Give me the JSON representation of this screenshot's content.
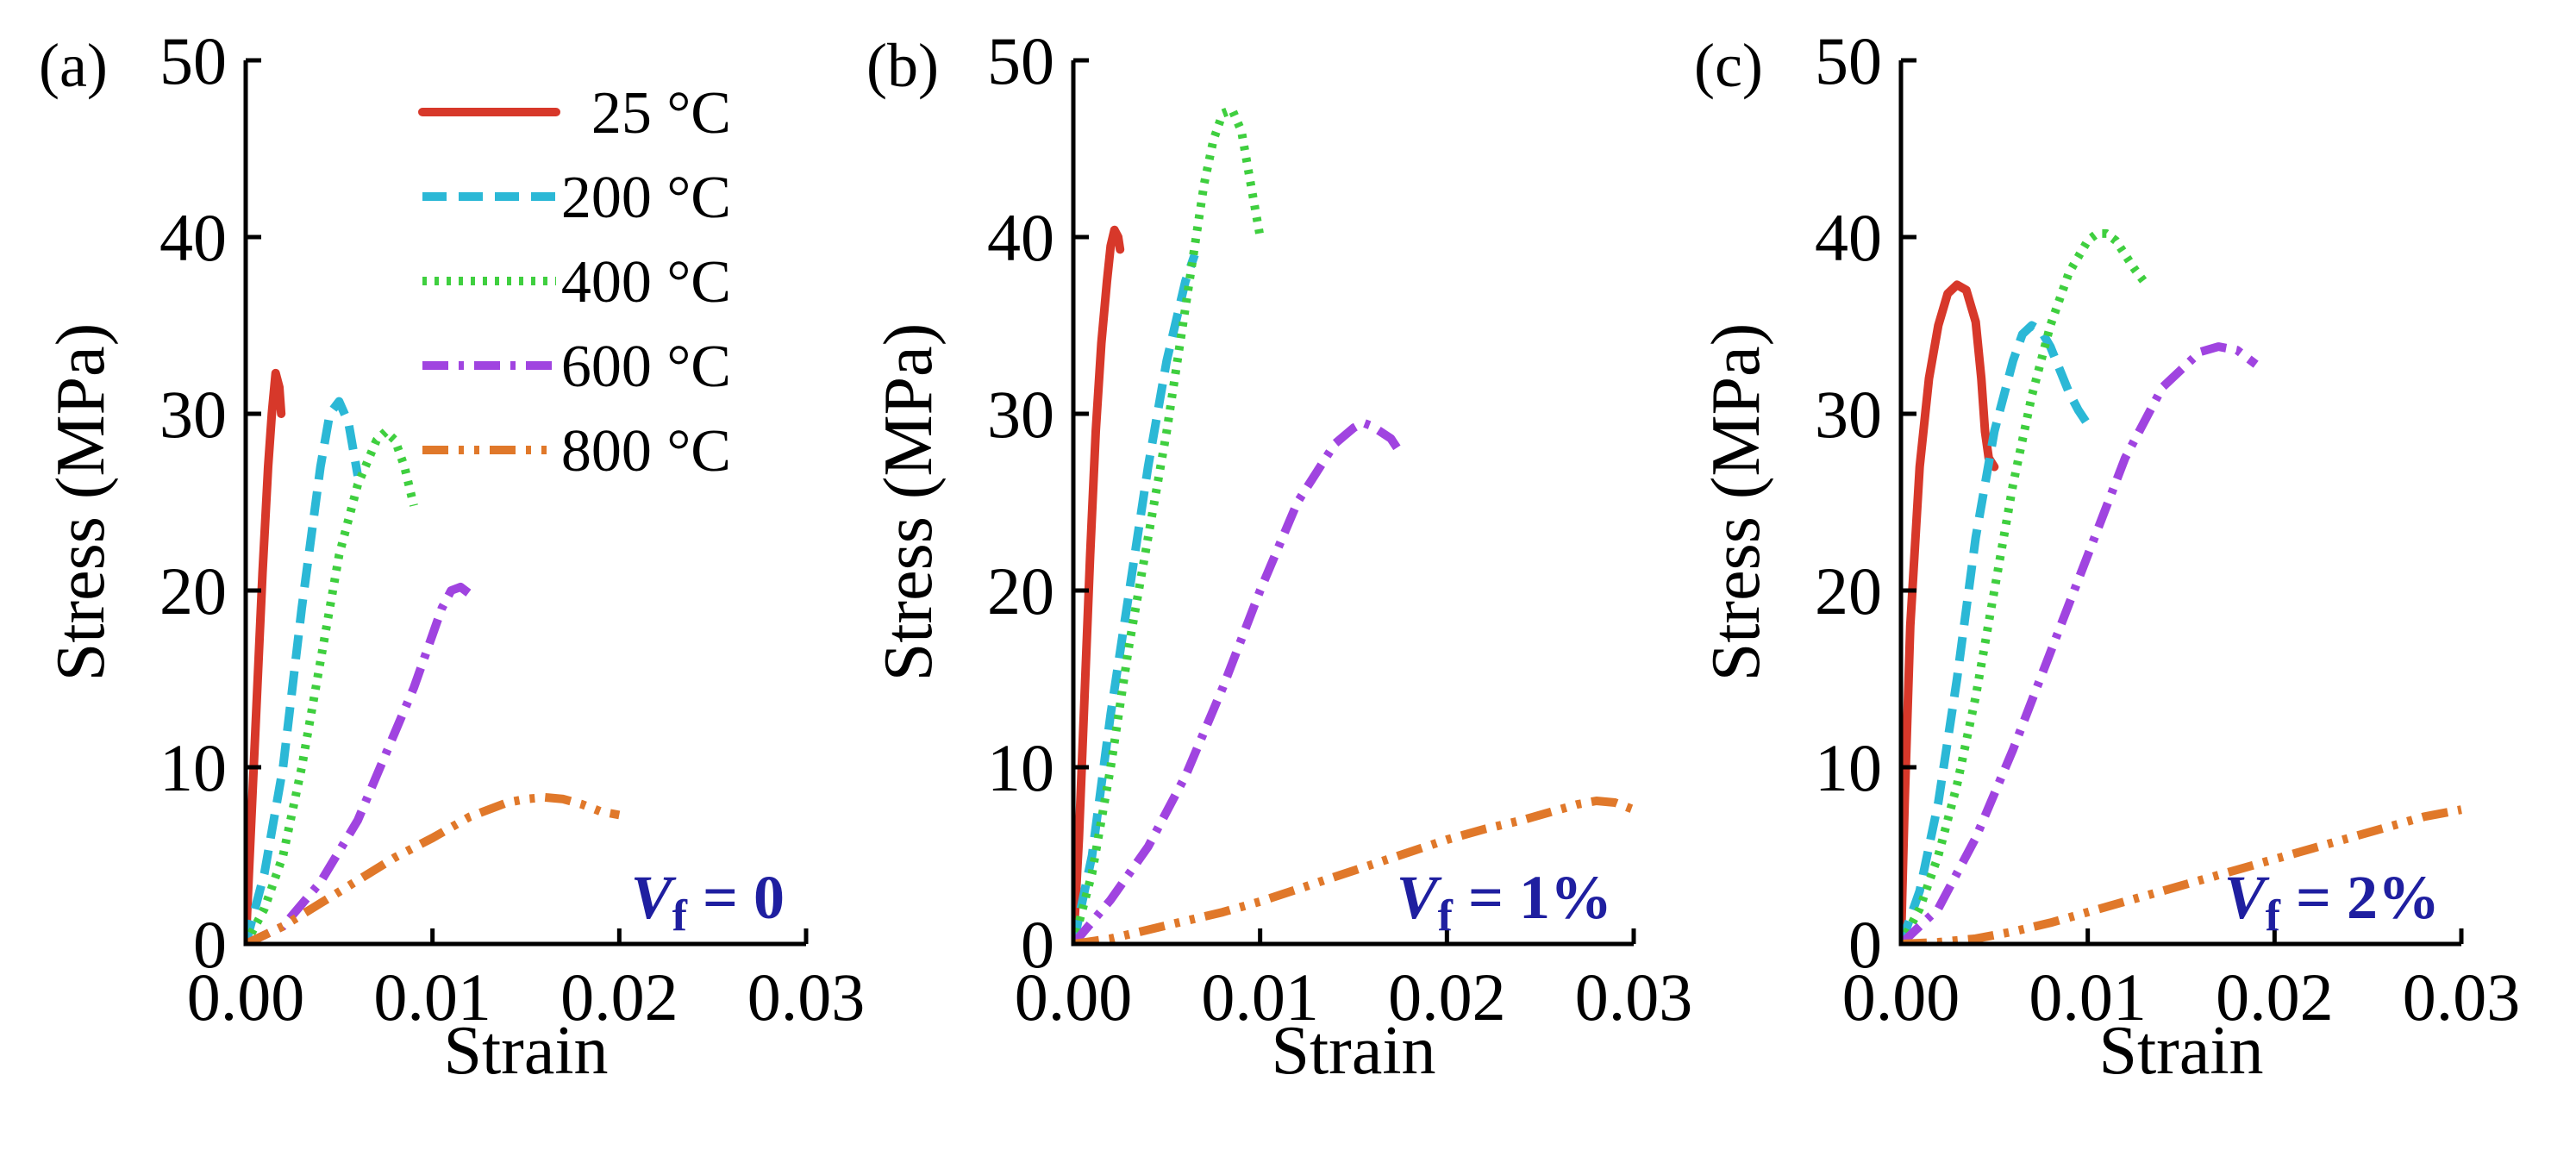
{
  "figure": {
    "legend": [
      {
        "label": "25 °C",
        "color": "#d7382a",
        "dash": "solid"
      },
      {
        "label": "200 °C",
        "color": "#2bb8d6",
        "dash": "dash"
      },
      {
        "label": "400 °C",
        "color": "#3fcf3f",
        "dash": "dot"
      },
      {
        "label": "600 °C",
        "color": "#a044e0",
        "dash": "dashdot"
      },
      {
        "label": "800 °C",
        "color": "#e0782a",
        "dash": "dashdotdot"
      }
    ]
  },
  "chart_data": [
    {
      "type": "line",
      "panel_label": "(a)",
      "xlabel": "Strain",
      "ylabel": "Stress (MPa)",
      "xlim": [
        0,
        0.03
      ],
      "ylim": [
        0,
        50
      ],
      "xticks": [
        "0.00",
        "0.01",
        "0.02",
        "0.03"
      ],
      "yticks": [
        "0",
        "10",
        "20",
        "30",
        "40",
        "50"
      ],
      "annotation": {
        "symbol": "V",
        "sub": "f",
        "text": " = 0"
      },
      "series": [
        {
          "name": "25 °C",
          "x": [
            0,
            0.0003,
            0.0006,
            0.0009,
            0.0012,
            0.0014,
            0.0016,
            0.0018,
            0.0019
          ],
          "y": [
            0,
            7,
            14,
            21,
            27,
            30,
            32.3,
            31.5,
            30
          ]
        },
        {
          "name": "200 °C",
          "x": [
            0,
            0.001,
            0.002,
            0.003,
            0.004,
            0.0045,
            0.005,
            0.0055,
            0.006
          ],
          "y": [
            0,
            4,
            10,
            19,
            27,
            30,
            30.7,
            29.5,
            26.5
          ]
        },
        {
          "name": "400 °C",
          "x": [
            0,
            0.001,
            0.002,
            0.003,
            0.004,
            0.005,
            0.006,
            0.007,
            0.0075,
            0.008,
            0.0085,
            0.009
          ],
          "y": [
            0,
            2,
            5,
            10,
            16,
            22,
            26,
            28.5,
            29,
            28.5,
            27,
            24.8
          ]
        },
        {
          "name": "600 °C",
          "x": [
            0,
            0.002,
            0.004,
            0.006,
            0.008,
            0.009,
            0.01,
            0.0105,
            0.011,
            0.0115,
            0.012
          ],
          "y": [
            0,
            1,
            3.5,
            7,
            12,
            14.5,
            17.5,
            19,
            20,
            20.2,
            19.8
          ]
        },
        {
          "name": "800 °C",
          "x": [
            0,
            0.002,
            0.004,
            0.006,
            0.008,
            0.01,
            0.012,
            0.014,
            0.015,
            0.016,
            0.017,
            0.018,
            0.019,
            0.02
          ],
          "y": [
            0,
            1,
            2.3,
            3.6,
            4.9,
            6,
            7.2,
            8,
            8.2,
            8.3,
            8.2,
            7.9,
            7.5,
            7.3
          ]
        }
      ]
    },
    {
      "type": "line",
      "panel_label": "(b)",
      "xlabel": "Strain",
      "ylabel": "Stress (MPa)",
      "xlim": [
        0,
        0.03
      ],
      "ylim": [
        0,
        50
      ],
      "xticks": [
        "0.00",
        "0.01",
        "0.02",
        "0.03"
      ],
      "yticks": [
        "0",
        "10",
        "20",
        "30",
        "40",
        "50"
      ],
      "annotation": {
        "symbol": "V",
        "sub": "f",
        "text": " = 1%"
      },
      "series": [
        {
          "name": "25 °C",
          "x": [
            0,
            0.0003,
            0.0006,
            0.0009,
            0.0012,
            0.0015,
            0.0018,
            0.002,
            0.0022,
            0.0024,
            0.0025
          ],
          "y": [
            0,
            6,
            14,
            22,
            29,
            34,
            37.5,
            39.5,
            40.4,
            40,
            39.3
          ]
        },
        {
          "name": "200 °C",
          "x": [
            0,
            0.001,
            0.002,
            0.003,
            0.004,
            0.005,
            0.006,
            0.0065
          ],
          "y": [
            0,
            5,
            13,
            20,
            27,
            33,
            37.5,
            39
          ]
        },
        {
          "name": "400 °C",
          "x": [
            0,
            0.001,
            0.002,
            0.003,
            0.004,
            0.005,
            0.006,
            0.007,
            0.0075,
            0.008,
            0.0085,
            0.009,
            0.0095,
            0.01
          ],
          "y": [
            0,
            4,
            10,
            17,
            23,
            29,
            36,
            43,
            45.5,
            47,
            47.2,
            46,
            43,
            40
          ]
        },
        {
          "name": "600 °C",
          "x": [
            0,
            0.002,
            0.004,
            0.006,
            0.008,
            0.01,
            0.012,
            0.014,
            0.015,
            0.0155,
            0.016,
            0.017,
            0.0175
          ],
          "y": [
            0,
            2.5,
            5.5,
            9.5,
            14.5,
            20,
            25,
            28.3,
            29.2,
            29.5,
            29.3,
            28.6,
            27.8
          ]
        },
        {
          "name": "800 °C",
          "x": [
            0,
            0.002,
            0.004,
            0.006,
            0.008,
            0.01,
            0.012,
            0.014,
            0.016,
            0.018,
            0.02,
            0.022,
            0.024,
            0.026,
            0.027,
            0.028,
            0.029,
            0.03
          ],
          "y": [
            0,
            0.3,
            0.8,
            1.3,
            1.8,
            2.4,
            3.1,
            3.8,
            4.5,
            5.2,
            5.9,
            6.5,
            7,
            7.6,
            7.9,
            8.1,
            8,
            7.6
          ]
        }
      ]
    },
    {
      "type": "line",
      "panel_label": "(c)",
      "xlabel": "Strain",
      "ylabel": "Stress (MPa)",
      "xlim": [
        0,
        0.03
      ],
      "ylim": [
        0,
        50
      ],
      "xticks": [
        "0.00",
        "0.01",
        "0.02",
        "0.03"
      ],
      "yticks": [
        "0",
        "10",
        "20",
        "30",
        "40",
        "50"
      ],
      "annotation": {
        "symbol": "V",
        "sub": "f",
        "text": " = 2%"
      },
      "series": [
        {
          "name": "25 °C",
          "x": [
            0,
            0.0002,
            0.0005,
            0.001,
            0.0015,
            0.002,
            0.0025,
            0.003,
            0.0035,
            0.004,
            0.0043,
            0.0045,
            0.0047,
            0.005
          ],
          "y": [
            0,
            8,
            18,
            27,
            32,
            35,
            36.8,
            37.3,
            37,
            35.2,
            32,
            29,
            27.5,
            27
          ]
        },
        {
          "name": "200 °C",
          "x": [
            0,
            0.001,
            0.002,
            0.003,
            0.004,
            0.005,
            0.006,
            0.0065,
            0.007,
            0.0075,
            0.008,
            0.0085,
            0.009,
            0.0095,
            0.01
          ],
          "y": [
            0,
            3,
            8,
            15,
            23,
            29,
            33,
            34.5,
            35,
            34.7,
            33.8,
            32.5,
            31.2,
            30.2,
            29.4
          ]
        },
        {
          "name": "400 °C",
          "x": [
            0,
            0.001,
            0.002,
            0.003,
            0.004,
            0.005,
            0.006,
            0.007,
            0.008,
            0.009,
            0.01,
            0.0105,
            0.011,
            0.0115,
            0.012,
            0.0125,
            0.013
          ],
          "y": [
            0,
            2,
            5,
            9,
            14,
            20,
            26,
            31,
            35,
            38,
            39.8,
            40.2,
            40.2,
            39.8,
            39,
            38.2,
            37.5
          ]
        },
        {
          "name": "600 °C",
          "x": [
            0,
            0.002,
            0.004,
            0.006,
            0.008,
            0.01,
            0.012,
            0.014,
            0.016,
            0.017,
            0.018,
            0.0185,
            0.019
          ],
          "y": [
            0,
            2,
            6,
            11,
            16.5,
            22,
            27.5,
            31.5,
            33.5,
            33.8,
            33.6,
            33.2,
            32.8
          ]
        },
        {
          "name": "800 °C",
          "x": [
            0,
            0.002,
            0.004,
            0.006,
            0.008,
            0.01,
            0.012,
            0.014,
            0.016,
            0.018,
            0.02,
            0.022,
            0.024,
            0.026,
            0.028,
            0.029,
            0.03
          ],
          "y": [
            0,
            0.1,
            0.3,
            0.7,
            1.2,
            1.8,
            2.4,
            3,
            3.6,
            4.2,
            4.8,
            5.4,
            6,
            6.6,
            7.2,
            7.4,
            7.6
          ]
        }
      ]
    }
  ]
}
